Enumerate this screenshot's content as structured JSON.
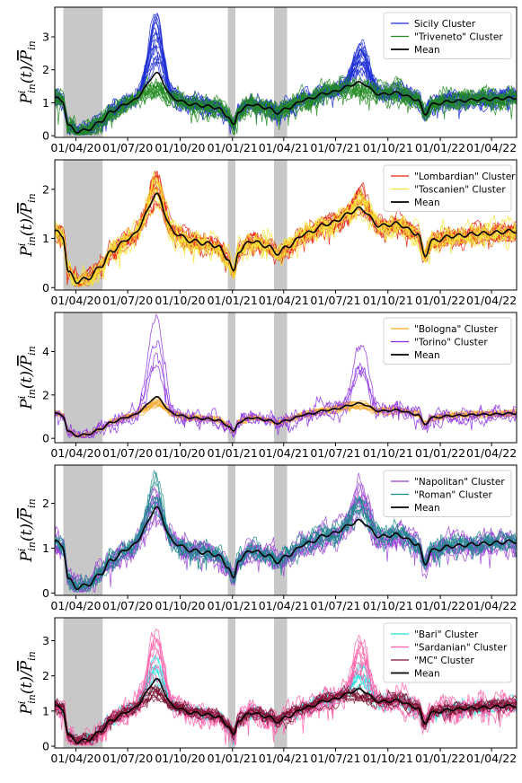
{
  "chart_data": [
    {
      "type": "line",
      "ylabel": "P_in^i(t)/P_in",
      "x_ticks": [
        "01/04/20",
        "01/07/20",
        "01/10/20",
        "01/01/21",
        "01/04/21",
        "01/07/21",
        "01/10/21",
        "01/01/22",
        "01/04/22"
      ],
      "y_ticks": [
        0,
        1,
        2,
        3
      ],
      "ylim": [
        -0.05,
        3.9
      ],
      "shaded_periods": [
        [
          "2020-03-10",
          "2020-05-18"
        ],
        [
          "2020-12-24",
          "2021-01-06"
        ],
        [
          "2021-03-15",
          "2021-04-07"
        ]
      ],
      "legend_position": "top-right",
      "series": [
        {
          "name": "Sicily Cluster",
          "color": "#1f2fd6",
          "lines": 20,
          "peaks": [
            3.7,
            2.8
          ],
          "spread": 0.14
        },
        {
          "name": "\"Triveneto\" Cluster",
          "color": "#228b22",
          "lines": 12,
          "peaks": [
            1.3,
            1.1
          ],
          "spread": 0.18
        },
        {
          "name": "Mean",
          "color": "#000000",
          "lines": 1
        }
      ]
    },
    {
      "type": "line",
      "ylabel": "P_in^i(t)/P_in",
      "x_ticks": [
        "01/04/20",
        "01/07/20",
        "01/10/20",
        "01/01/21",
        "01/04/21",
        "01/07/21",
        "01/10/21",
        "01/01/22",
        "01/04/22"
      ],
      "y_ticks": [
        0,
        1,
        2
      ],
      "ylim": [
        -0.05,
        2.6
      ],
      "shaded_periods": [
        [
          "2020-03-10",
          "2020-05-18"
        ],
        [
          "2020-12-24",
          "2021-01-06"
        ],
        [
          "2021-03-15",
          "2021-04-07"
        ]
      ],
      "legend_position": "top-right",
      "series": [
        {
          "name": "\"Lombardian\" Cluster",
          "color": "#e8200c",
          "lines": 14,
          "peaks": [
            2.4,
            2.0
          ],
          "spread": 0.1
        },
        {
          "name": "\"Toscanien\" Cluster",
          "color": "#f5e43a",
          "lines": 8,
          "peaks": [
            2.3,
            1.9
          ],
          "spread": 0.14
        },
        {
          "name": "Mean",
          "color": "#000000",
          "lines": 1
        }
      ]
    },
    {
      "type": "line",
      "ylabel": "P_in^i(t)/P_in",
      "x_ticks": [
        "01/04/20",
        "01/07/20",
        "01/10/20",
        "01/01/21",
        "01/04/21",
        "01/07/21",
        "01/10/21",
        "01/01/22",
        "01/04/22"
      ],
      "y_ticks": [
        0,
        2,
        4
      ],
      "ylim": [
        -0.2,
        5.8
      ],
      "shaded_periods": [
        [
          "2020-03-10",
          "2020-05-18"
        ],
        [
          "2020-12-24",
          "2021-01-06"
        ],
        [
          "2021-03-15",
          "2021-04-07"
        ]
      ],
      "legend_position": "top-right",
      "series": [
        {
          "name": "\"Bologna\" Cluster",
          "color": "#f5a623",
          "lines": 12,
          "peaks": [
            1.7,
            1.5
          ],
          "spread": 0.06
        },
        {
          "name": "\"Torino\" Cluster",
          "color": "#8a2be2",
          "lines": 4,
          "peaks": [
            5.6,
            4.4
          ],
          "spread": 0.25
        },
        {
          "name": "Mean",
          "color": "#000000",
          "lines": 1
        }
      ]
    },
    {
      "type": "line",
      "ylabel": "P_in^i(t)/P_in",
      "x_ticks": [
        "01/04/20",
        "01/07/20",
        "01/10/20",
        "01/01/21",
        "01/04/21",
        "01/07/21",
        "01/10/21",
        "01/01/22",
        "01/04/22"
      ],
      "y_ticks": [
        0,
        1,
        2
      ],
      "ylim": [
        -0.05,
        2.85
      ],
      "shaded_periods": [
        [
          "2020-03-10",
          "2020-05-18"
        ],
        [
          "2020-12-24",
          "2021-01-06"
        ],
        [
          "2021-03-15",
          "2021-04-07"
        ]
      ],
      "legend_position": "top-right",
      "series": [
        {
          "name": "\"Napolitan\" Cluster",
          "color": "#9a3fd6",
          "lines": 10,
          "peaks": [
            2.3,
            2.5
          ],
          "spread": 0.15
        },
        {
          "name": "\"Roman\" Cluster",
          "color": "#178a8a",
          "lines": 8,
          "peaks": [
            2.6,
            2.1
          ],
          "spread": 0.13
        },
        {
          "name": "Mean",
          "color": "#000000",
          "lines": 1
        }
      ]
    },
    {
      "type": "line",
      "ylabel": "P_in^i(t)/P_in",
      "x_ticks": [
        "01/04/20",
        "01/07/20",
        "01/10/20",
        "01/01/21",
        "01/04/21",
        "01/07/21",
        "01/10/21",
        "01/01/22",
        "01/04/22"
      ],
      "y_ticks": [
        0,
        1,
        2,
        3
      ],
      "ylim": [
        -0.05,
        3.65
      ],
      "shaded_periods": [
        [
          "2020-03-10",
          "2020-05-18"
        ],
        [
          "2020-12-24",
          "2021-01-06"
        ],
        [
          "2021-03-15",
          "2021-04-07"
        ]
      ],
      "legend_position": "top-right",
      "series": [
        {
          "name": "\"Bari\" Cluster",
          "color": "#22e0e0",
          "lines": 10,
          "peaks": [
            2.5,
            2.2
          ],
          "spread": 0.1
        },
        {
          "name": "\"Sardanian\" Cluster",
          "color": "#ff5ca8",
          "lines": 8,
          "peaks": [
            3.5,
            3.2
          ],
          "spread": 0.2
        },
        {
          "name": "\"MC\" Cluster",
          "color": "#7a0f2e",
          "lines": 10,
          "peaks": [
            1.5,
            1.3
          ],
          "spread": 0.1
        },
        {
          "name": "Mean",
          "color": "#000000",
          "lines": 1
        }
      ]
    }
  ]
}
